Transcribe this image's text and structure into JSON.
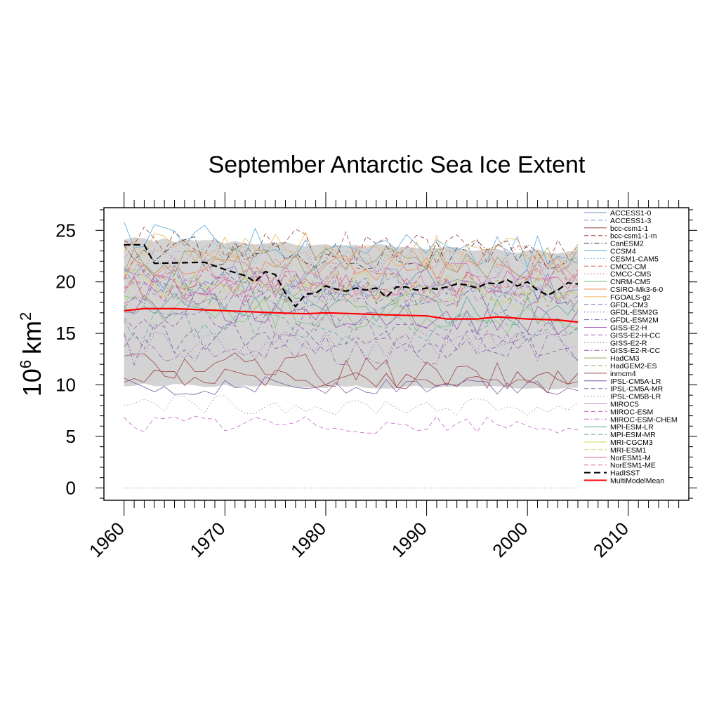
{
  "chart_data": {
    "type": "line",
    "title": "September Antarctic Sea Ice Extent",
    "ylabel": {
      "base": "10",
      "exp1": "6",
      "unit": "km",
      "exp2": "2"
    },
    "xlim": [
      1958,
      2016
    ],
    "ylim": [
      -1.2,
      27.2
    ],
    "x_ticks": [
      1960,
      1970,
      1980,
      1990,
      2000,
      2010
    ],
    "x_tick_labels": [
      "1960",
      "1970",
      "1980",
      "1990",
      "2000",
      "2010"
    ],
    "y_ticks": [
      0,
      5,
      10,
      15,
      20,
      25
    ],
    "y_tick_labels": [
      "0",
      "5",
      "10",
      "15",
      "20",
      "25"
    ],
    "x_start": 1960,
    "spread_band": {
      "upper": 24.2,
      "lower": 10.0,
      "color": "#d3d3d3"
    },
    "legend_position": "right",
    "series": [
      {
        "name": "ACCESS1-0",
        "color": "#6f8fc8",
        "dash": "solid",
        "mean": 20.5,
        "trend": -0.02
      },
      {
        "name": "ACCESS1-3",
        "color": "#6f8fc8",
        "dash": "dash",
        "mean": 19.8,
        "trend": -0.03
      },
      {
        "name": "bcc-csm1-1",
        "color": "#9a3a3a",
        "dash": "solid",
        "mean": 10.8,
        "trend": -0.01
      },
      {
        "name": "bcc-csm1-1-m",
        "color": "#9a3a3a",
        "dash": "dash",
        "mean": 24.2,
        "trend": -0.03
      },
      {
        "name": "CanESM2",
        "color": "#333333",
        "dash": "dashdot",
        "mean": 23.0,
        "trend": -0.01
      },
      {
        "name": "CCSM4",
        "color": "#5aa9d6",
        "dash": "solid",
        "mean": 24.5,
        "trend": -0.04
      },
      {
        "name": "CESM1-CAM5",
        "color": "#5aa9d6",
        "dash": "dot",
        "mean": 22.5,
        "trend": -0.01
      },
      {
        "name": "CMCC-CM",
        "color": "#d9534f",
        "dash": "dash",
        "mean": 20.8,
        "trend": -0.01
      },
      {
        "name": "CMCC-CMS",
        "color": "#d9534f",
        "dash": "dot",
        "mean": 22.0,
        "trend": 0.0
      },
      {
        "name": "CNRM-CM5",
        "color": "#7cc47c",
        "dash": "solid",
        "mean": 17.5,
        "trend": -0.03
      },
      {
        "name": "CSIRO-Mk3-6-0",
        "color": "#f28a5a",
        "dash": "solid",
        "mean": 21.5,
        "trend": 0.0
      },
      {
        "name": "FGOALS-g2",
        "color": "#f0b45a",
        "dash": "solid",
        "mean": 23.6,
        "trend": -0.02
      },
      {
        "name": "GFDL-CM3",
        "color": "#5a6ea0",
        "dash": "dash",
        "mean": 20.2,
        "trend": -0.04
      },
      {
        "name": "GFDL-ESM2G",
        "color": "#5a6ea0",
        "dash": "dot",
        "mean": 0.0,
        "trend": 0.0
      },
      {
        "name": "GFDL-ESM2M",
        "color": "#5a6ea0",
        "dash": "dashdot",
        "mean": 19.0,
        "trend": -0.02
      },
      {
        "name": "GISS-E2-H",
        "color": "#9b59b6",
        "dash": "solid",
        "mean": 17.8,
        "trend": -0.04
      },
      {
        "name": "GISS-E2-H-CC",
        "color": "#9b59b6",
        "dash": "dash",
        "mean": 16.5,
        "trend": -0.03
      },
      {
        "name": "GISS-E2-R",
        "color": "#9b59b6",
        "dash": "dot",
        "mean": 14.0,
        "trend": 0.0
      },
      {
        "name": "GISS-E2-R-CC",
        "color": "#9b59b6",
        "dash": "dashdot",
        "mean": 13.5,
        "trend": 0.0
      },
      {
        "name": "HadCM3",
        "color": "#9c9a5a",
        "dash": "solid",
        "mean": 21.8,
        "trend": 0.0
      },
      {
        "name": "HadGEM2-ES",
        "color": "#9c9a5a",
        "dash": "dash",
        "mean": 19.5,
        "trend": -0.01
      },
      {
        "name": "inmcm4",
        "color": "#a04a4a",
        "dash": "solid",
        "mean": 12.2,
        "trend": -0.04
      },
      {
        "name": "IPSL-CM5A-LR",
        "color": "#7a5aa6",
        "dash": "solid",
        "mean": 9.9,
        "trend": 0.0
      },
      {
        "name": "IPSL-CM5A-MR",
        "color": "#7a5aa6",
        "dash": "dash",
        "mean": 14.8,
        "trend": -0.02
      },
      {
        "name": "IPSL-CM5B-LR",
        "color": "#8a8aa6",
        "dash": "dot",
        "mean": 8.2,
        "trend": -0.01
      },
      {
        "name": "MIROC5",
        "color": "#c88ac8",
        "dash": "solid",
        "mean": 21.0,
        "trend": -0.01
      },
      {
        "name": "MIROC-ESM",
        "color": "#c860c8",
        "dash": "dash",
        "mean": 6.2,
        "trend": -0.005
      },
      {
        "name": "MIROC-ESM-CHEM",
        "color": "#c860c8",
        "dash": "dashdot",
        "mean": 19.2,
        "trend": -0.01
      },
      {
        "name": "MPI-ESM-LR",
        "color": "#5aa89a",
        "dash": "solid",
        "mean": 18.0,
        "trend": -0.02
      },
      {
        "name": "MPI-ESM-MR",
        "color": "#5aa89a",
        "dash": "dash",
        "mean": 16.0,
        "trend": -0.02
      },
      {
        "name": "MRI-CGCM3",
        "color": "#c8d850",
        "dash": "solid",
        "mean": 19.7,
        "trend": -0.01
      },
      {
        "name": "MRI-ESM1",
        "color": "#c8d850",
        "dash": "dash",
        "mean": 19.0,
        "trend": -0.01
      },
      {
        "name": "NorESM1-M",
        "color": "#e060a0",
        "dash": "solid",
        "mean": 19.6,
        "trend": 0.0
      },
      {
        "name": "NorESM1-ME",
        "color": "#e060a0",
        "dash": "dash",
        "mean": 19.3,
        "trend": 0.0
      },
      {
        "name": "HadISST",
        "color": "#000000",
        "dash": "dashbold",
        "width": 2.2,
        "x": [
          1960,
          1962,
          1963,
          1968,
          1970,
          1971,
          1972,
          1973,
          1974,
          1975,
          1976,
          1977,
          1978,
          1979,
          1980,
          1981,
          1982,
          1983,
          1984,
          1985,
          1986,
          1987,
          1988,
          1989,
          1990,
          1991,
          1992,
          1993,
          1994,
          1995,
          1996,
          1997,
          1998,
          1999,
          2000,
          2001,
          2002,
          2003,
          2004,
          2005
        ],
        "values": [
          23.6,
          23.6,
          21.8,
          21.9,
          21.2,
          20.9,
          20.6,
          20.0,
          21.0,
          20.7,
          18.9,
          17.6,
          18.8,
          18.9,
          19.6,
          19.3,
          19.1,
          19.4,
          19.2,
          19.4,
          18.5,
          19.5,
          19.5,
          19.2,
          19.4,
          19.3,
          19.5,
          19.8,
          19.7,
          19.4,
          19.9,
          19.8,
          20.2,
          19.6,
          20.0,
          19.2,
          18.7,
          19.2,
          19.9,
          19.8
        ]
      },
      {
        "name": "MultiModelMean",
        "color": "#ff0000",
        "dash": "solid",
        "width": 2.2,
        "x": [
          1960,
          1962,
          1965,
          1970,
          1975,
          1978,
          1980,
          1983,
          1986,
          1990,
          1992,
          1995,
          1997,
          2000,
          2003,
          2005
        ],
        "values": [
          17.2,
          17.4,
          17.4,
          17.2,
          17.0,
          16.9,
          17.0,
          16.9,
          16.8,
          16.7,
          16.4,
          16.4,
          16.6,
          16.4,
          16.3,
          16.1
        ]
      }
    ]
  }
}
